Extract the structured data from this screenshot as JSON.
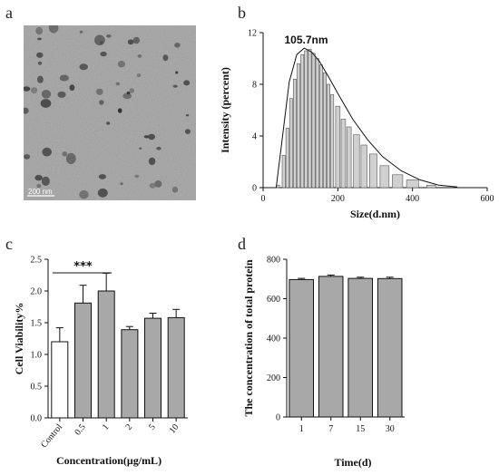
{
  "panels": {
    "a": {
      "letter": "a",
      "scale_bar_label": "200 nm"
    },
    "b": {
      "letter": "b"
    },
    "c": {
      "letter": "c"
    },
    "d": {
      "letter": "d"
    }
  },
  "chart_data": [
    {
      "type": "bar",
      "panel": "b",
      "title": "",
      "xlabel": "Size(d.nm)",
      "ylabel": "Intensity (percent)",
      "xlim": [
        0,
        600
      ],
      "ylim": [
        0,
        12
      ],
      "xticks": [
        0,
        200,
        400,
        600
      ],
      "yticks": [
        0,
        4,
        8,
        12
      ],
      "annotation": "105.7nm",
      "annotation_x": 105.7,
      "x": [
        40,
        55,
        65,
        75,
        85,
        95,
        105,
        115,
        125,
        135,
        145,
        155,
        165,
        175,
        185,
        200,
        215,
        230,
        250,
        270,
        295,
        325,
        360,
        400,
        450
      ],
      "values": [
        0.2,
        2.5,
        4.6,
        6.9,
        8.4,
        9.6,
        10.3,
        10.6,
        10.7,
        10.4,
        10.0,
        9.5,
        8.9,
        8.0,
        7.2,
        6.3,
        5.3,
        4.7,
        4.1,
        3.3,
        2.6,
        1.7,
        1.0,
        0.6,
        0.2
      ],
      "fit_curve": {
        "x": [
          35,
          50,
          70,
          90,
          110,
          130,
          150,
          175,
          200,
          240,
          280,
          320,
          370,
          420,
          470,
          520
        ],
        "y": [
          0,
          3.5,
          8.2,
          10.3,
          10.8,
          10.5,
          9.8,
          8.6,
          7.3,
          5.3,
          3.7,
          2.4,
          1.3,
          0.6,
          0.2,
          0.05
        ]
      }
    },
    {
      "type": "bar",
      "panel": "c",
      "title": "",
      "xlabel": "Concentration(μg/mL)",
      "ylabel": "Cell Viability%",
      "categories": [
        "Control",
        "0.5",
        "1",
        "2",
        "5",
        "10"
      ],
      "values": [
        1.2,
        1.81,
        2.0,
        1.39,
        1.57,
        1.58
      ],
      "errors": [
        0.22,
        0.28,
        0.28,
        0.05,
        0.08,
        0.13
      ],
      "ylim": [
        0,
        2.5
      ],
      "yticks": [
        "0.0",
        "0.5",
        "1.0",
        "1.5",
        "2.0",
        "2.5"
      ],
      "significance": "***",
      "colors": {
        "control": "#ffffff",
        "treated": "#a8a8a8"
      }
    },
    {
      "type": "bar",
      "panel": "d",
      "title": "",
      "xlabel": "Time(d)",
      "ylabel": "The concentration of total protein",
      "categories": [
        "1",
        "7",
        "15",
        "30"
      ],
      "values": [
        697,
        713,
        703,
        702
      ],
      "errors": [
        6,
        7,
        6,
        7
      ],
      "ylim": [
        0,
        800
      ],
      "yticks": [
        0,
        200,
        400,
        600,
        800
      ],
      "colors": {
        "bar": "#a8a8a8"
      }
    }
  ]
}
